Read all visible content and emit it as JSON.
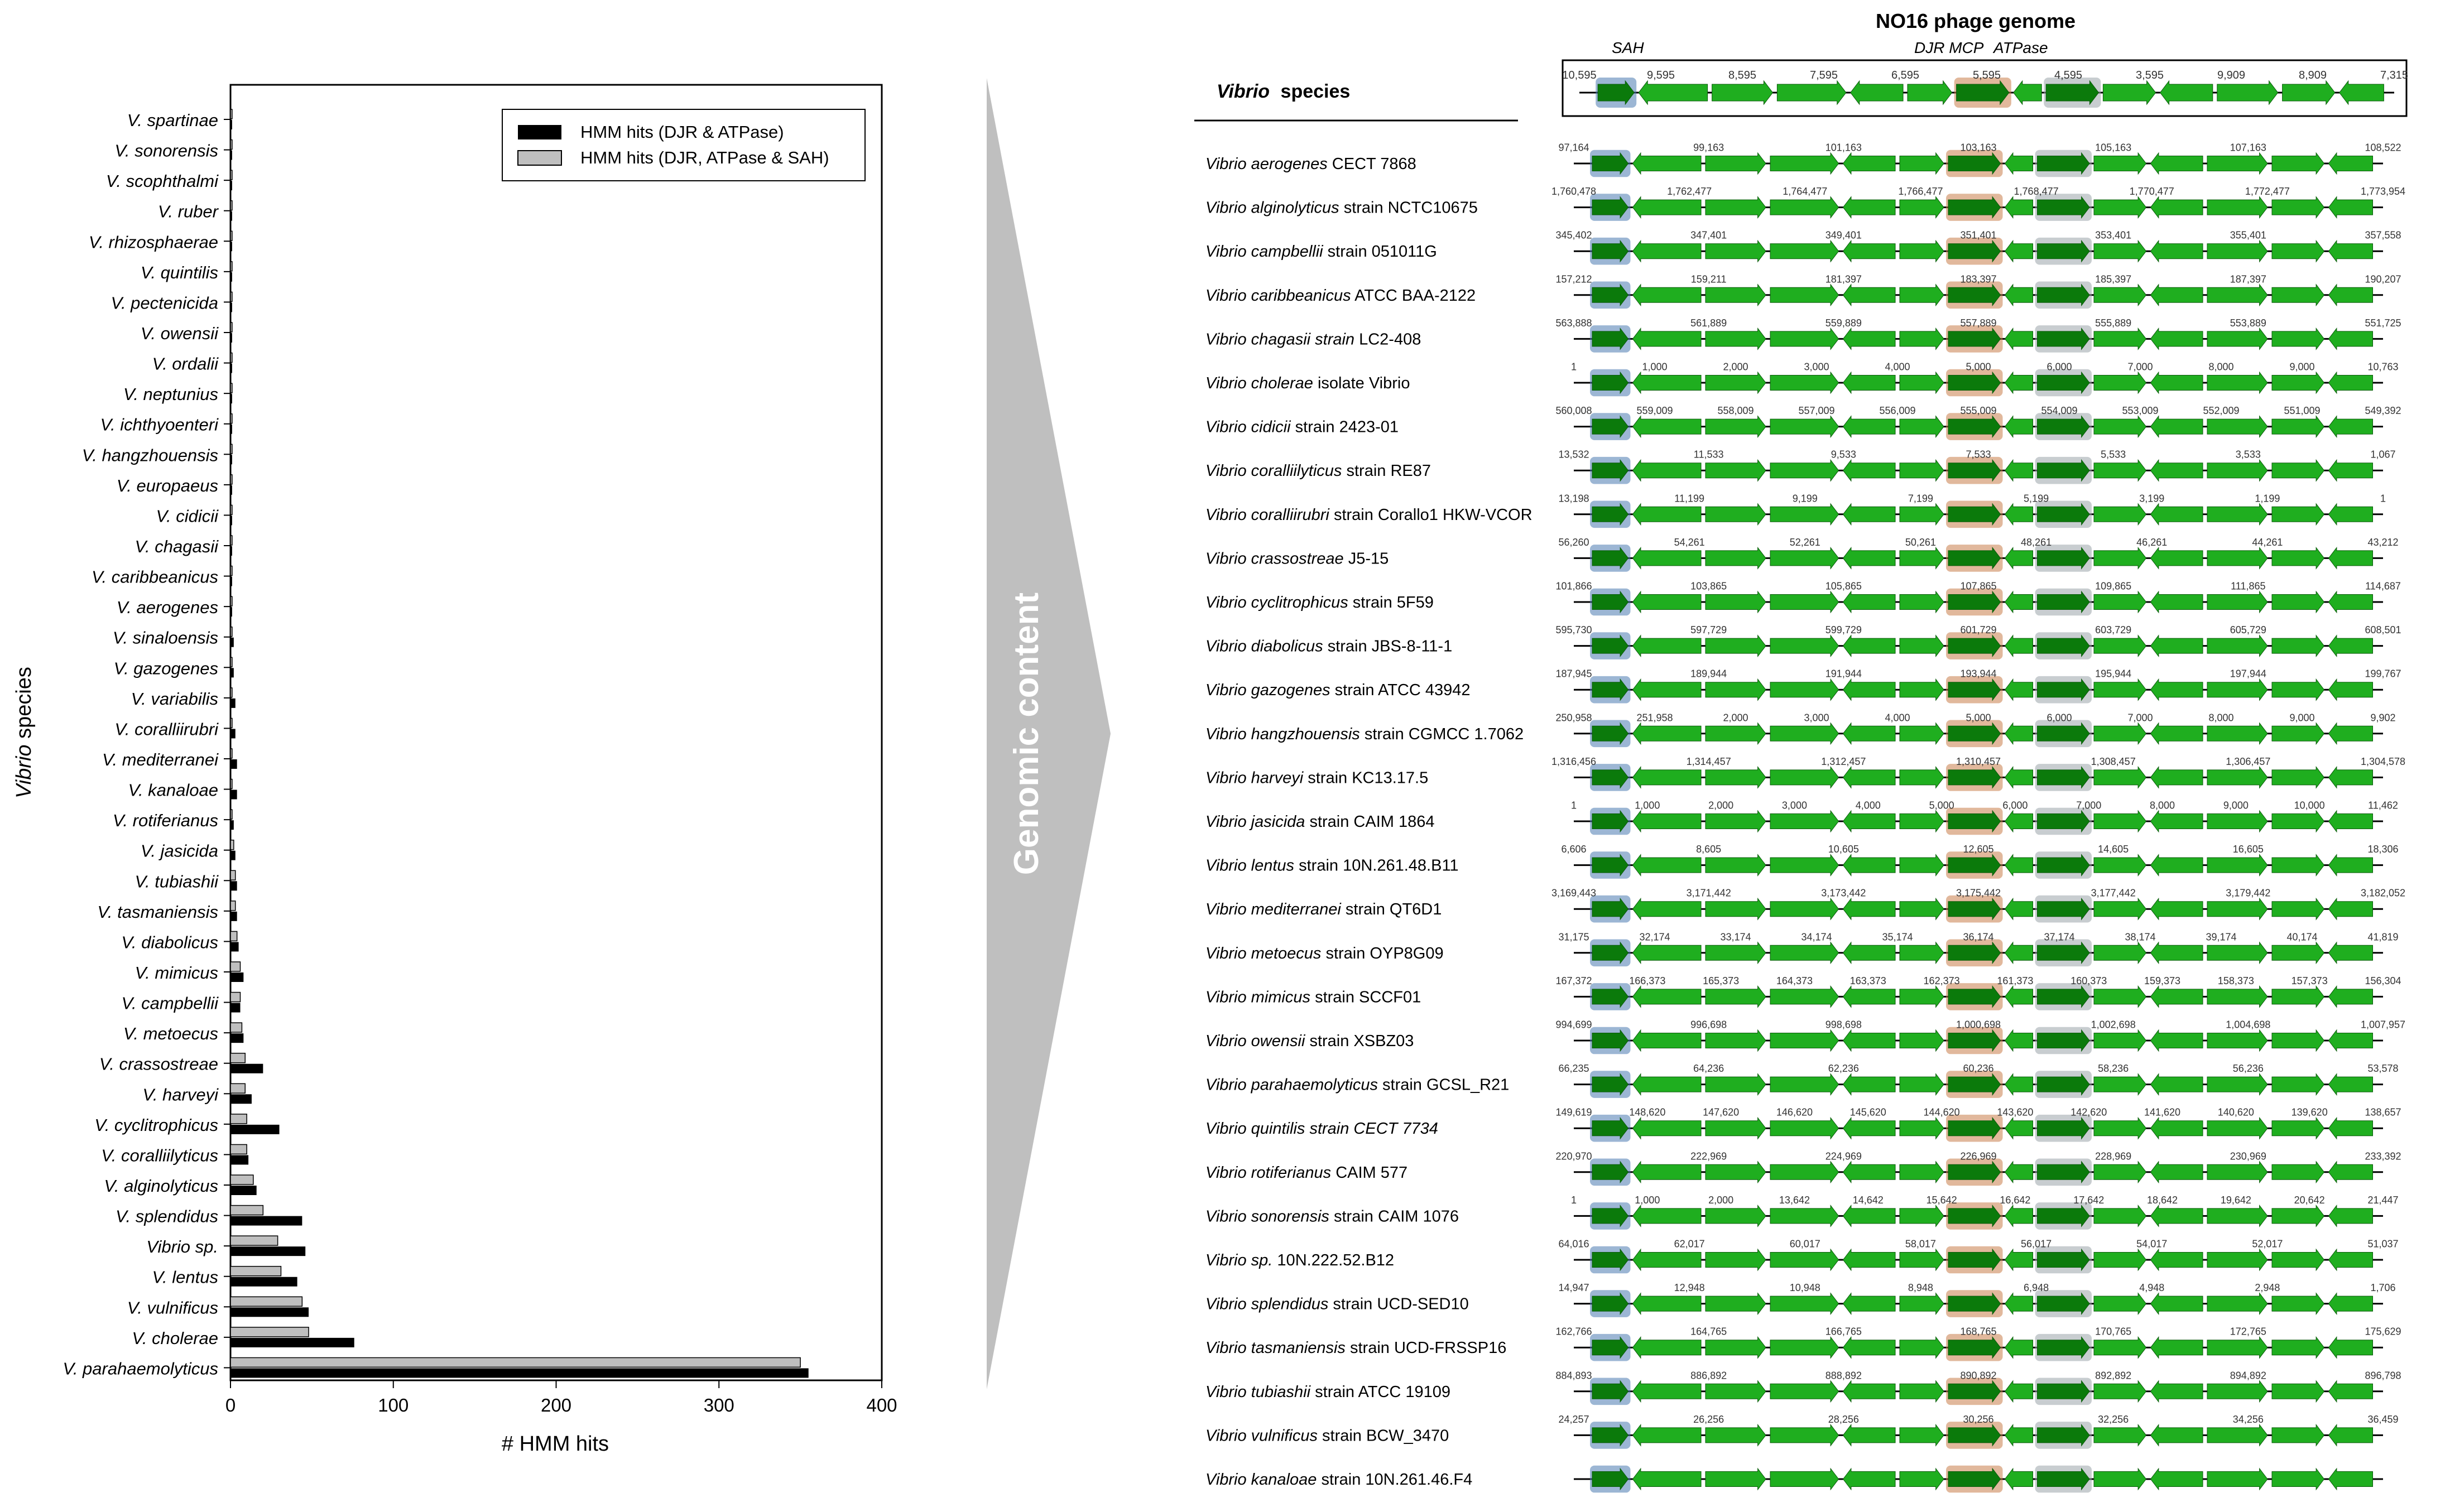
{
  "chart_data": {
    "type": "bar",
    "orientation": "horizontal",
    "ylabel": "Vibrio species",
    "xlabel": "# HMM hits",
    "xlim": [
      0,
      400
    ],
    "xticks": [
      "0",
      "100",
      "200",
      "300",
      "400"
    ],
    "legend_position": "top-right",
    "categories": [
      "V. spartinae",
      "V. sonorensis",
      "V. scophthalmi",
      "V. ruber",
      "V. rhizosphaerae",
      "V. quintilis",
      "V. pectenicida",
      "V. owensii",
      "V. ordalii",
      "V. neptunius",
      "V. ichthyoenteri",
      "V. hangzhouensis",
      "V. europaeus",
      "V. cidicii",
      "V. chagasii",
      "V. caribbeanicus",
      "V. aerogenes",
      "V. sinaloensis",
      "V. gazogenes",
      "V. variabilis",
      "V. coralliirubri",
      "V. mediterranei",
      "V. kanaloae",
      "V. rotiferianus",
      "V. jasicida",
      "V. tubiashii",
      "V. tasmaniensis",
      "V. diabolicus",
      "V. mimicus",
      "V. campbellii",
      "V. metoecus",
      "V. crassostreae",
      "V. harveyi",
      "V. cyclitrophicus",
      "V. coralliilyticus",
      "V. alginolyticus",
      "V. splendidus",
      "Vibrio sp.",
      "V. lentus",
      "V. vulnificus",
      "V. cholerae",
      "V. parahaemolyticus"
    ],
    "series": [
      {
        "name": "HMM hits (DJR & ATPase)",
        "color": "#000000",
        "values": [
          1,
          1,
          1,
          1,
          1,
          1,
          1,
          1,
          1,
          1,
          1,
          1,
          1,
          1,
          1,
          1,
          1,
          2,
          2,
          3,
          3,
          4,
          4,
          2,
          3,
          4,
          4,
          5,
          8,
          6,
          8,
          20,
          13,
          30,
          11,
          16,
          44,
          46,
          41,
          48,
          76,
          355
        ]
      },
      {
        "name": "HMM hits (DJR, ATPase & SAH)",
        "color": "#bfbfbf",
        "values": [
          1,
          1,
          1,
          1,
          1,
          1,
          1,
          1,
          1,
          1,
          1,
          1,
          1,
          1,
          1,
          1,
          1,
          1,
          1,
          1,
          1,
          1,
          1,
          1,
          2,
          3,
          3,
          4,
          6,
          6,
          7,
          9,
          9,
          10,
          10,
          14,
          20,
          29,
          31,
          44,
          48,
          350
        ]
      }
    ]
  },
  "arrow_label": "Genomic content",
  "genome": {
    "title": "NO16 phage genome",
    "header_label_italic": "Vibrio",
    "header_label_rest": "species",
    "gene_labels": {
      "sah": "SAH",
      "mcp": "DJR MCP",
      "atpase": "ATPase"
    },
    "reference_ticks": [
      "10,595",
      "9,595",
      "8,595",
      "7,595",
      "6,595",
      "5,595",
      "4,595",
      "3,595",
      "9,909",
      "8,909",
      "7,315"
    ],
    "strains": [
      {
        "italic": "Vibrio aerogenes",
        "rest": " CECT 7868",
        "ticks": [
          "97,164",
          "99,163",
          "101,163",
          "103,163",
          "105,163",
          "107,163",
          "108,522"
        ]
      },
      {
        "italic": "Vibrio alginolyticus",
        "rest": " strain NCTC10675",
        "ticks": [
          "1,760,478",
          "1,762,477",
          "1,764,477",
          "1,766,477",
          "1,768,477",
          "1,770,477",
          "1,772,477",
          "1,773,954"
        ]
      },
      {
        "italic": "Vibrio campbellii",
        "rest": " strain 051011G",
        "ticks": [
          "345,402",
          "347,401",
          "349,401",
          "351,401",
          "353,401",
          "355,401",
          "357,558"
        ]
      },
      {
        "italic": "Vibrio caribbeanicus",
        "rest": " ATCC BAA-2122",
        "ticks": [
          "157,212",
          "159,211",
          "181,397",
          "183,397",
          "185,397",
          "187,397",
          "190,207"
        ]
      },
      {
        "italic": "Vibrio chagasii strain",
        "rest": " LC2-408",
        "ticks": [
          "563,888",
          "561,889",
          "559,889",
          "557,889",
          "555,889",
          "553,889",
          "551,725"
        ]
      },
      {
        "italic": "Vibrio cholerae",
        "rest": " isolate Vibrio",
        "ticks": [
          "1",
          "1,000",
          "2,000",
          "3,000",
          "4,000",
          "5,000",
          "6,000",
          "7,000",
          "8,000",
          "9,000",
          "10,763"
        ]
      },
      {
        "italic": "Vibrio cidicii",
        "rest": " strain 2423-01",
        "ticks": [
          "560,008",
          "559,009",
          "558,009",
          "557,009",
          "556,009",
          "555,009",
          "554,009",
          "553,009",
          "552,009",
          "551,009",
          "549,392"
        ]
      },
      {
        "italic": "Vibrio coralliilyticus",
        "rest": " strain RE87",
        "ticks": [
          "13,532",
          "11,533",
          "9,533",
          "7,533",
          "5,533",
          "3,533",
          "1,067"
        ]
      },
      {
        "italic": "Vibrio coralliirubri",
        "rest": " strain Corallo1 HKW-VCOR",
        "ticks": [
          "13,198",
          "11,199",
          "9,199",
          "7,199",
          "5,199",
          "3,199",
          "1,199",
          "1"
        ]
      },
      {
        "italic": "Vibrio crassostreae",
        "rest": " J5-15",
        "ticks": [
          "56,260",
          "54,261",
          "52,261",
          "50,261",
          "48,261",
          "46,261",
          "44,261",
          "43,212"
        ]
      },
      {
        "italic": "Vibrio cyclitrophicus",
        "rest": " strain 5F59",
        "ticks": [
          "101,866",
          "103,865",
          "105,865",
          "107,865",
          "109,865",
          "111,865",
          "114,687"
        ]
      },
      {
        "italic": "Vibrio diabolicus",
        "rest": " strain JBS-8-11-1",
        "ticks": [
          "595,730",
          "597,729",
          "599,729",
          "601,729",
          "603,729",
          "605,729",
          "608,501"
        ]
      },
      {
        "italic": "Vibrio gazogenes",
        "rest": " strain ATCC 43942",
        "ticks": [
          "187,945",
          "189,944",
          "191,944",
          "193,944",
          "195,944",
          "197,944",
          "199,767"
        ]
      },
      {
        "italic": "Vibrio hangzhouensis",
        "rest": " strain CGMCC 1.7062",
        "ticks": [
          "250,958",
          "251,958",
          "2,000",
          "3,000",
          "4,000",
          "5,000",
          "6,000",
          "7,000",
          "8,000",
          "9,000",
          "9,902"
        ]
      },
      {
        "italic": "Vibrio harveyi",
        "rest": " strain KC13.17.5",
        "ticks": [
          "1,316,456",
          "1,314,457",
          "1,312,457",
          "1,310,457",
          "1,308,457",
          "1,306,457",
          "1,304,578"
        ]
      },
      {
        "italic": "Vibrio jasicida",
        "rest": " strain CAIM 1864",
        "ticks": [
          "1",
          "1,000",
          "2,000",
          "3,000",
          "4,000",
          "5,000",
          "6,000",
          "7,000",
          "8,000",
          "9,000",
          "10,000",
          "11,462"
        ]
      },
      {
        "italic": "Vibrio lentus",
        "rest": " strain 10N.261.48.B11",
        "ticks": [
          "6,606",
          "8,605",
          "10,605",
          "12,605",
          "14,605",
          "16,605",
          "18,306"
        ]
      },
      {
        "italic": "Vibrio mediterranei",
        "rest": " strain QT6D1",
        "ticks": [
          "3,169,443",
          "3,171,442",
          "3,173,442",
          "3,175,442",
          "3,177,442",
          "3,179,442",
          "3,182,052"
        ]
      },
      {
        "italic": "Vibrio metoecus",
        "rest": " strain OYP8G09",
        "ticks": [
          "31,175",
          "32,174",
          "33,174",
          "34,174",
          "35,174",
          "36,174",
          "37,174",
          "38,174",
          "39,174",
          "40,174",
          "41,819"
        ]
      },
      {
        "italic": "Vibrio mimicus",
        "rest": " strain SCCF01",
        "ticks": [
          "167,372",
          "166,373",
          "165,373",
          "164,373",
          "163,373",
          "162,373",
          "161,373",
          "160,373",
          "159,373",
          "158,373",
          "157,373",
          "156,304"
        ]
      },
      {
        "italic": "Vibrio owensii",
        "rest": " strain XSBZ03",
        "ticks": [
          "994,699",
          "996,698",
          "998,698",
          "1,000,698",
          "1,002,698",
          "1,004,698",
          "1,007,957"
        ]
      },
      {
        "italic": "Vibrio parahaemolyticus",
        "rest": " strain GCSL_R21",
        "ticks": [
          "66,235",
          "64,236",
          "62,236",
          "60,236",
          "58,236",
          "56,236",
          "53,578"
        ]
      },
      {
        "italic": "Vibrio quintilis strain CECT 7734",
        "rest": "",
        "ticks": [
          "149,619",
          "148,620",
          "147,620",
          "146,620",
          "145,620",
          "144,620",
          "143,620",
          "142,620",
          "141,620",
          "140,620",
          "139,620",
          "138,657"
        ]
      },
      {
        "italic": "Vibrio rotiferianus",
        "rest": " CAIM 577",
        "ticks": [
          "220,970",
          "222,969",
          "224,969",
          "226,969",
          "228,969",
          "230,969",
          "233,392"
        ]
      },
      {
        "italic": "Vibrio sonorensis",
        "rest": " strain CAIM 1076",
        "ticks": [
          "1",
          "1,000",
          "2,000",
          "13,642",
          "14,642",
          "15,642",
          "16,642",
          "17,642",
          "18,642",
          "19,642",
          "20,642",
          "21,447"
        ]
      },
      {
        "italic": "Vibrio sp.",
        "rest": " 10N.222.52.B12",
        "ticks": [
          "64,016",
          "62,017",
          "60,017",
          "58,017",
          "56,017",
          "54,017",
          "52,017",
          "51,037"
        ]
      },
      {
        "italic": "Vibrio splendidus",
        "rest": " strain UCD-SED10",
        "ticks": [
          "14,947",
          "12,948",
          "10,948",
          "8,948",
          "6,948",
          "4,948",
          "2,948",
          "1,706"
        ]
      },
      {
        "italic": "Vibrio tasmaniensis",
        "rest": " strain UCD-FRSSP16",
        "ticks": [
          "162,766",
          "164,765",
          "166,765",
          "168,765",
          "170,765",
          "172,765",
          "175,629"
        ]
      },
      {
        "italic": "Vibrio tubiashii",
        "rest": " strain ATCC 19109",
        "ticks": [
          "884,893",
          "886,892",
          "888,892",
          "890,892",
          "892,892",
          "894,892",
          "896,798"
        ]
      },
      {
        "italic": "Vibrio vulnificus",
        "rest": " strain BCW_3470",
        "ticks": [
          "24,257",
          "26,256",
          "28,256",
          "30,256",
          "32,256",
          "34,256",
          "36,459"
        ]
      },
      {
        "italic": "Vibrio kanaloae",
        "rest": " strain 10N.261.46.F4",
        "ticks": []
      }
    ]
  }
}
